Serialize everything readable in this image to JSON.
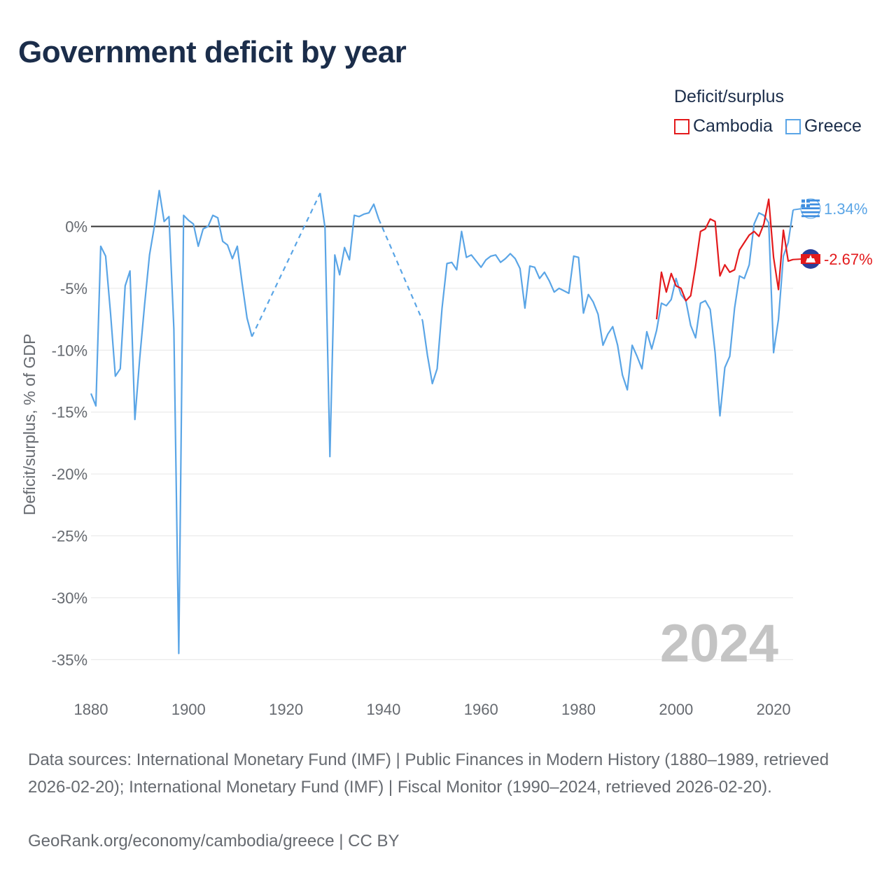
{
  "title": "Government deficit by year",
  "legend": {
    "title": "Deficit/surplus",
    "items": [
      {
        "name": "Cambodia",
        "color": "#e31a1c"
      },
      {
        "name": "Greece",
        "color": "#5aa5e6"
      }
    ]
  },
  "footer": {
    "sources": "Data sources: International Monetary Fund (IMF) | Public Finances in Modern History (1880–1989, retrieved 2026-02-20); International Monetary Fund (IMF) | Fiscal Monitor (1990–2024, retrieved 2026-02-20).",
    "credit": "GeoRank.org/economy/cambodia/greece | CC BY"
  },
  "chart_data": {
    "type": "line",
    "title": "Government deficit by year",
    "xlabel": "",
    "ylabel": "Deficit/surplus, % of GDP",
    "xlim": [
      1880,
      2024
    ],
    "ylim": [
      -35,
      2.9
    ],
    "x_ticks": [
      1880,
      1900,
      1920,
      1940,
      1960,
      1980,
      2000,
      2020
    ],
    "y_ticks": [
      0,
      -5,
      -10,
      -15,
      -20,
      -25,
      -30,
      -35
    ],
    "y_tick_labels": [
      "0%",
      "-5%",
      "-10%",
      "-15%",
      "-20%",
      "-25%",
      "-30%",
      "-35%"
    ],
    "year_label": "2024",
    "zero_line": true,
    "series": [
      {
        "name": "Greece",
        "color": "#5aa5e6",
        "end_label": "1.34%",
        "segments": [
          {
            "style": "solid",
            "points": [
              [
                1880,
                -13.5
              ],
              [
                1881,
                -14.5
              ],
              [
                1882,
                -1.6
              ],
              [
                1883,
                -2.4
              ],
              [
                1884,
                -7.0
              ],
              [
                1885,
                -12.1
              ],
              [
                1886,
                -11.5
              ],
              [
                1887,
                -4.8
              ],
              [
                1888,
                -3.6
              ],
              [
                1889,
                -15.6
              ],
              [
                1890,
                -10.6
              ],
              [
                1891,
                -6.3
              ],
              [
                1892,
                -2.3
              ],
              [
                1893,
                0.0
              ],
              [
                1894,
                2.9
              ],
              [
                1895,
                0.4
              ],
              [
                1896,
                0.8
              ],
              [
                1897,
                -8.3
              ],
              [
                1898,
                -34.5
              ],
              [
                1899,
                0.9
              ],
              [
                1900,
                0.5
              ],
              [
                1901,
                0.2
              ],
              [
                1902,
                -1.6
              ],
              [
                1903,
                -0.2
              ],
              [
                1904,
                0.0
              ],
              [
                1905,
                0.9
              ],
              [
                1906,
                0.7
              ],
              [
                1907,
                -1.2
              ],
              [
                1908,
                -1.5
              ],
              [
                1909,
                -2.6
              ],
              [
                1910,
                -1.6
              ],
              [
                1911,
                -4.6
              ],
              [
                1912,
                -7.4
              ],
              [
                1913,
                -8.9
              ]
            ]
          },
          {
            "style": "dashed",
            "points": [
              [
                1913,
                -8.9
              ],
              [
                1927,
                2.7
              ]
            ]
          },
          {
            "style": "solid",
            "points": [
              [
                1927,
                2.7
              ],
              [
                1928,
                -0.1
              ],
              [
                1929,
                -18.6
              ],
              [
                1930,
                -2.3
              ],
              [
                1931,
                -3.9
              ],
              [
                1932,
                -1.7
              ],
              [
                1933,
                -2.7
              ],
              [
                1934,
                0.9
              ],
              [
                1935,
                0.8
              ],
              [
                1936,
                1.0
              ],
              [
                1937,
                1.1
              ],
              [
                1938,
                1.8
              ],
              [
                1939,
                0.6
              ]
            ]
          },
          {
            "style": "dashed",
            "points": [
              [
                1939,
                0.6
              ],
              [
                1948,
                -7.6
              ]
            ]
          },
          {
            "style": "solid",
            "points": [
              [
                1948,
                -7.6
              ],
              [
                1949,
                -10.4
              ],
              [
                1950,
                -12.7
              ],
              [
                1951,
                -11.5
              ],
              [
                1952,
                -6.6
              ],
              [
                1953,
                -3.0
              ],
              [
                1954,
                -2.9
              ],
              [
                1955,
                -3.5
              ],
              [
                1956,
                -0.4
              ],
              [
                1957,
                -2.5
              ],
              [
                1958,
                -2.3
              ],
              [
                1959,
                -2.8
              ],
              [
                1960,
                -3.3
              ],
              [
                1961,
                -2.7
              ],
              [
                1962,
                -2.4
              ],
              [
                1963,
                -2.3
              ],
              [
                1964,
                -2.9
              ],
              [
                1965,
                -2.6
              ],
              [
                1966,
                -2.2
              ],
              [
                1967,
                -2.6
              ],
              [
                1968,
                -3.4
              ],
              [
                1969,
                -6.6
              ],
              [
                1970,
                -3.2
              ],
              [
                1971,
                -3.3
              ],
              [
                1972,
                -4.2
              ],
              [
                1973,
                -3.7
              ],
              [
                1974,
                -4.4
              ],
              [
                1975,
                -5.3
              ],
              [
                1976,
                -5.0
              ],
              [
                1977,
                -5.2
              ],
              [
                1978,
                -5.4
              ],
              [
                1979,
                -2.4
              ],
              [
                1980,
                -2.5
              ],
              [
                1981,
                -7.0
              ],
              [
                1982,
                -5.5
              ],
              [
                1983,
                -6.1
              ],
              [
                1984,
                -7.1
              ],
              [
                1985,
                -9.6
              ],
              [
                1986,
                -8.7
              ],
              [
                1987,
                -8.1
              ],
              [
                1988,
                -9.6
              ],
              [
                1989,
                -12.0
              ],
              [
                1990,
                -13.2
              ],
              [
                1991,
                -9.6
              ],
              [
                1992,
                -10.5
              ],
              [
                1993,
                -11.5
              ],
              [
                1994,
                -8.5
              ],
              [
                1995,
                -9.9
              ],
              [
                1996,
                -8.4
              ],
              [
                1997,
                -6.2
              ],
              [
                1998,
                -6.4
              ],
              [
                1999,
                -5.9
              ],
              [
                2000,
                -4.2
              ],
              [
                2001,
                -5.5
              ],
              [
                2002,
                -6.0
              ],
              [
                2003,
                -8.0
              ],
              [
                2004,
                -9.0
              ],
              [
                2005,
                -6.2
              ],
              [
                2006,
                -6.0
              ],
              [
                2007,
                -6.7
              ],
              [
                2008,
                -10.2
              ],
              [
                2009,
                -15.3
              ],
              [
                2010,
                -11.4
              ],
              [
                2011,
                -10.5
              ],
              [
                2012,
                -6.6
              ],
              [
                2013,
                -4.0
              ],
              [
                2014,
                -4.2
              ],
              [
                2015,
                -3.1
              ],
              [
                2016,
                0.2
              ],
              [
                2017,
                1.1
              ],
              [
                2018,
                0.9
              ],
              [
                2019,
                0.3
              ],
              [
                2020,
                -10.2
              ],
              [
                2021,
                -7.5
              ],
              [
                2022,
                -2.4
              ],
              [
                2023,
                -1.3
              ],
              [
                2024,
                1.34
              ]
            ]
          }
        ]
      },
      {
        "name": "Cambodia",
        "color": "#e31a1c",
        "end_label": "-2.67%",
        "segments": [
          {
            "style": "solid",
            "points": [
              [
                1996,
                -7.5
              ],
              [
                1997,
                -3.7
              ],
              [
                1998,
                -5.3
              ],
              [
                1999,
                -3.8
              ],
              [
                2000,
                -4.8
              ],
              [
                2001,
                -5.0
              ],
              [
                2002,
                -6.0
              ],
              [
                2003,
                -5.6
              ],
              [
                2004,
                -3.2
              ],
              [
                2005,
                -0.4
              ],
              [
                2006,
                -0.2
              ],
              [
                2007,
                0.6
              ],
              [
                2008,
                0.4
              ],
              [
                2009,
                -4.0
              ],
              [
                2010,
                -3.1
              ],
              [
                2011,
                -3.7
              ],
              [
                2012,
                -3.5
              ],
              [
                2013,
                -1.9
              ],
              [
                2014,
                -1.3
              ],
              [
                2015,
                -0.7
              ],
              [
                2016,
                -0.4
              ],
              [
                2017,
                -0.8
              ],
              [
                2018,
                0.2
              ],
              [
                2019,
                2.2
              ],
              [
                2020,
                -2.5
              ],
              [
                2021,
                -5.1
              ],
              [
                2022,
                -0.3
              ],
              [
                2023,
                -2.8
              ],
              [
                2024,
                -2.67
              ]
            ]
          }
        ]
      }
    ]
  }
}
